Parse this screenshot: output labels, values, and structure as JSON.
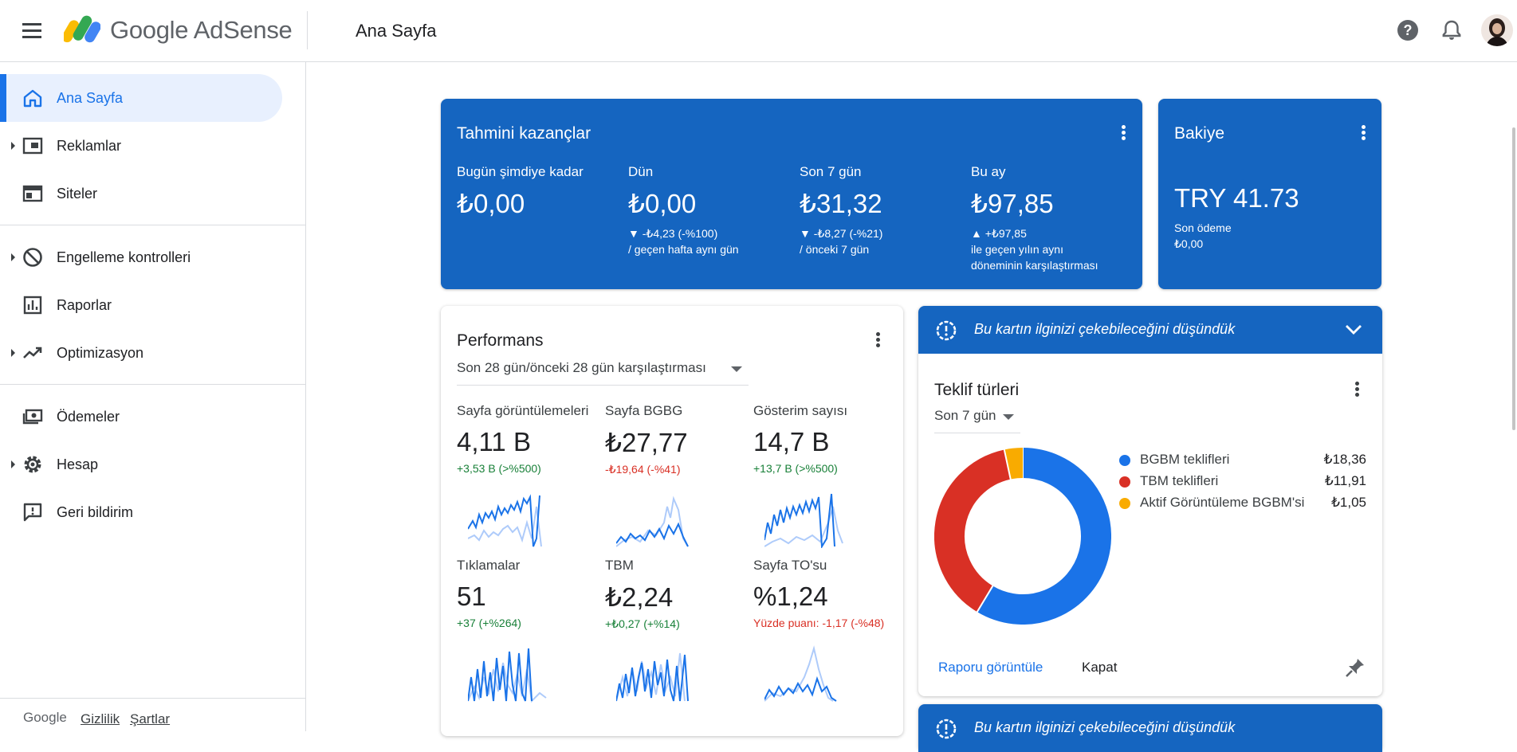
{
  "header": {
    "app_name": "Google AdSense",
    "page_title": "Ana Sayfa"
  },
  "sidebar": {
    "items": [
      {
        "label": "Ana Sayfa",
        "icon": "home-icon",
        "active": true
      },
      {
        "label": "Reklamlar",
        "icon": "ads-icon",
        "expandable": true
      },
      {
        "label": "Siteler",
        "icon": "sites-icon"
      },
      {
        "label": "Engelleme kontrolleri",
        "icon": "block-icon",
        "expandable": true
      },
      {
        "label": "Raporlar",
        "icon": "reports-icon"
      },
      {
        "label": "Optimizasyon",
        "icon": "trending-up-icon",
        "expandable": true
      },
      {
        "label": "Ödemeler",
        "icon": "payments-icon"
      },
      {
        "label": "Hesap",
        "icon": "gear-icon",
        "expandable": true
      },
      {
        "label": "Geri bildirim",
        "icon": "feedback-icon"
      }
    ],
    "footer": {
      "brand": "Google",
      "privacy": "Gizlilik",
      "terms": "Şartlar"
    }
  },
  "earnings": {
    "title": "Tahmini kazançlar",
    "columns": [
      {
        "label": "Bugün şimdiye kadar",
        "value": "₺0,00",
        "delta": "",
        "note1": "",
        "note2": ""
      },
      {
        "label": "Dün",
        "value": "₺0,00",
        "delta": "▼ -₺4,23 (-%100)",
        "note1": "/ geçen hafta aynı gün",
        "note2": ""
      },
      {
        "label": "Son 7 gün",
        "value": "₺31,32",
        "delta": "▼ -₺8,27 (-%21)",
        "note1": "/ önceki 7 gün",
        "note2": ""
      },
      {
        "label": "Bu ay",
        "value": "₺97,85",
        "delta": "▲ +₺97,85",
        "note1": "ile geçen yılın aynı",
        "note2": "döneminin karşılaştırması"
      }
    ]
  },
  "balance": {
    "title": "Bakiye",
    "value": "TRY 41.73",
    "last_payment_label": "Son ödeme",
    "last_payment_value": "₺0,00"
  },
  "performance": {
    "title": "Performans",
    "period": "Son 28 gün/önceki 28 gün karşılaştırması",
    "metrics": [
      {
        "label": "Sayfa görüntülemeleri",
        "value": "4,11 B",
        "delta": "+3,53 B (>%500)",
        "trend": "up"
      },
      {
        "label": "Sayfa BGBG",
        "value": "₺27,77",
        "delta": "-₺19,64 (-%41)",
        "trend": "down"
      },
      {
        "label": "Gösterim sayısı",
        "value": "14,7 B",
        "delta": "+13,7 B (>%500)",
        "trend": "up"
      },
      {
        "label": "Tıklamalar",
        "value": "51",
        "delta": "+37 (+%264)",
        "trend": "up"
      },
      {
        "label": "TBM",
        "value": "₺2,24",
        "delta": "+₺0,27 (+%14)",
        "trend": "up"
      },
      {
        "label": "Sayfa TO'su",
        "value": "%1,24",
        "delta": "Yüzde puanı: -1,17 (-%48)",
        "trend": "down"
      }
    ]
  },
  "insight": {
    "header_text": "Bu kartın ilginizi çekebileceğini düşündük",
    "title": "Teklif türleri",
    "period": "Son 7 gün",
    "view_report": "Raporu görüntüle",
    "dismiss": "Kapat"
  },
  "insight2": {
    "header_text": "Bu kartın ilginizi çekebileceğini düşündük"
  },
  "chart_data": {
    "type": "pie",
    "title": "Teklif türleri",
    "categories": [
      "BGBM teklifleri",
      "TBM teklifleri",
      "Aktif Görüntüleme BGBM'si"
    ],
    "values": [
      18.36,
      11.91,
      1.05
    ],
    "value_labels": [
      "₺18,36",
      "₺11,91",
      "₺1,05"
    ],
    "colors": [
      "#1a73e8",
      "#d93025",
      "#f9ab00"
    ],
    "legend": "right"
  },
  "colors": {
    "primary_blue": "#1565c0",
    "accent_blue": "#1a73e8",
    "positive": "#188038",
    "negative": "#d93025"
  }
}
